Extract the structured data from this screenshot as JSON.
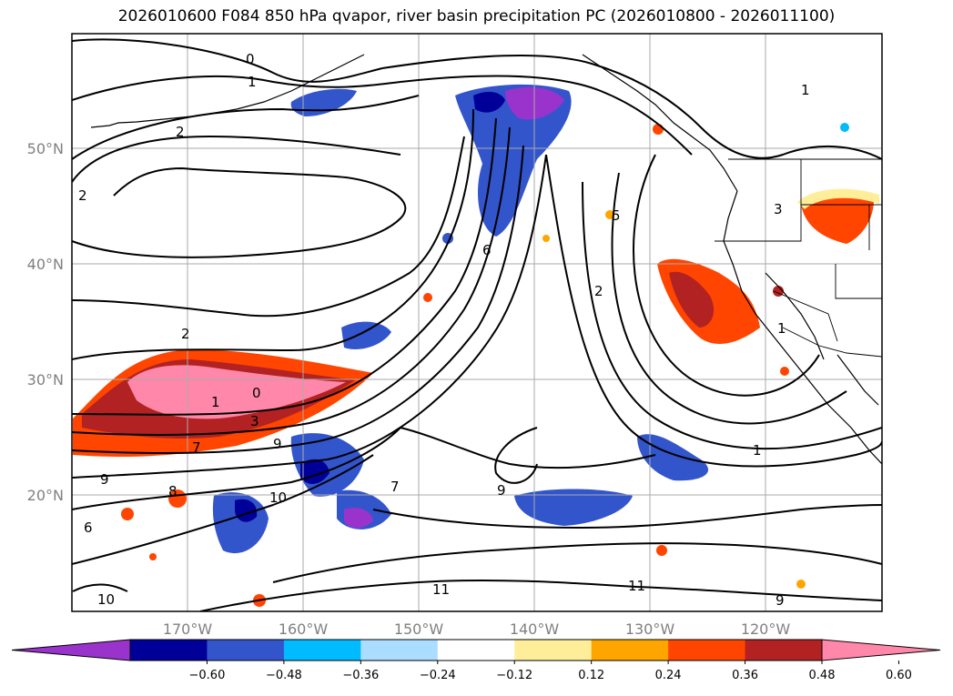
{
  "title": "2026010600 F084 850 hPa qvapor, river basin precipitation PC (2026010800 - 2026011100)",
  "lat_ticks": [
    "50°N",
    "40°N",
    "30°N",
    "20°N"
  ],
  "lon_ticks": [
    "170°W",
    "160°W",
    "150°W",
    "140°W",
    "130°W",
    "120°W"
  ],
  "contour_labels": [
    "0",
    "1",
    "2",
    "2",
    "2",
    "1",
    "0",
    "3",
    "7",
    "9",
    "10",
    "8",
    "9",
    "6",
    "10",
    "11",
    "11",
    "9",
    "7",
    "9",
    "6",
    "2",
    "1",
    "1",
    "3",
    "5",
    "1"
  ],
  "colorbar": {
    "colors": [
      "#9933cc",
      "#000099",
      "#3355cc",
      "#00bbff",
      "#aaddff",
      "#ffffff",
      "#ffee99",
      "#ffa500",
      "#ff4500",
      "#b22222",
      "#ff88aa"
    ],
    "labels": [
      "−0.60",
      "−0.48",
      "−0.36",
      "−0.24",
      "−0.12",
      "0.12",
      "0.24",
      "0.36",
      "0.48",
      "0.60"
    ]
  }
}
